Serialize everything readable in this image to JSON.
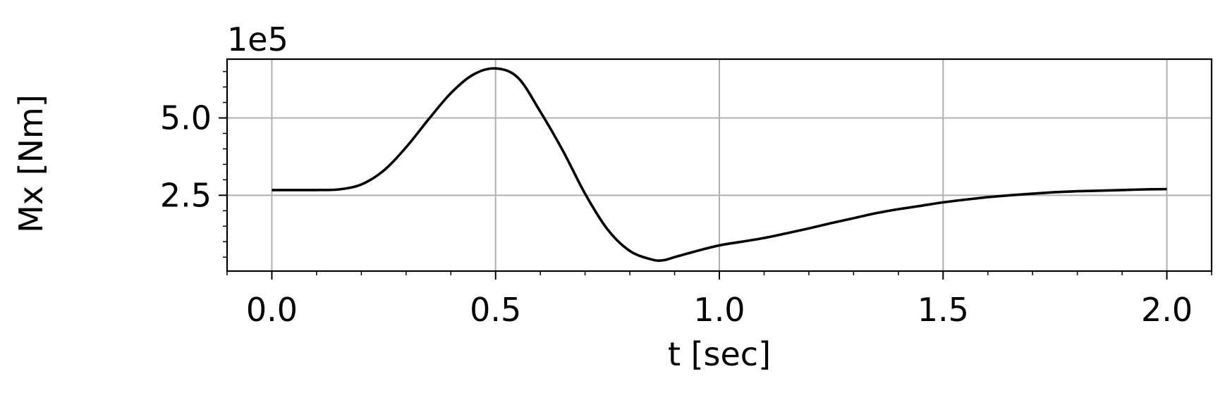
{
  "chart_data": {
    "type": "line",
    "title": "",
    "xlabel": "t [sec]",
    "ylabel": "Mx [Nm]",
    "y_offset_text": "1e5",
    "xlim": [
      -0.1,
      2.1
    ],
    "ylim": [
      0.05,
      6.9
    ],
    "x_ticks": [
      {
        "value": 0.0,
        "label": "0.0"
      },
      {
        "value": 0.5,
        "label": "0.5"
      },
      {
        "value": 1.0,
        "label": "1.0"
      },
      {
        "value": 1.5,
        "label": "1.5"
      },
      {
        "value": 2.0,
        "label": "2.0"
      }
    ],
    "y_ticks": [
      {
        "value": 2.5,
        "label": "2.5"
      },
      {
        "value": 5.0,
        "label": "5.0"
      }
    ],
    "x_minor_step": 0.1,
    "y_minor_step": 0.5,
    "grid": true,
    "line_color": "#000000",
    "grid_color": "#b0b0b0",
    "series": [
      {
        "x": [
          0.0,
          0.05,
          0.1,
          0.15,
          0.2,
          0.25,
          0.3,
          0.35,
          0.4,
          0.45,
          0.5,
          0.55,
          0.6,
          0.65,
          0.7,
          0.75,
          0.8,
          0.85,
          0.875,
          0.9,
          0.95,
          1.0,
          1.05,
          1.1,
          1.15,
          1.2,
          1.25,
          1.3,
          1.35,
          1.4,
          1.45,
          1.5,
          1.55,
          1.6,
          1.65,
          1.7,
          1.75,
          1.8,
          1.85,
          1.9,
          1.95,
          2.0
        ],
        "y": [
          2.67,
          2.67,
          2.67,
          2.69,
          2.85,
          3.3,
          4.05,
          4.95,
          5.8,
          6.4,
          6.6,
          6.3,
          5.2,
          3.95,
          2.55,
          1.4,
          0.7,
          0.42,
          0.4,
          0.5,
          0.7,
          0.88,
          1.0,
          1.12,
          1.27,
          1.43,
          1.6,
          1.76,
          1.92,
          2.05,
          2.16,
          2.27,
          2.36,
          2.44,
          2.5,
          2.55,
          2.6,
          2.63,
          2.65,
          2.67,
          2.69,
          2.7
        ]
      }
    ]
  }
}
